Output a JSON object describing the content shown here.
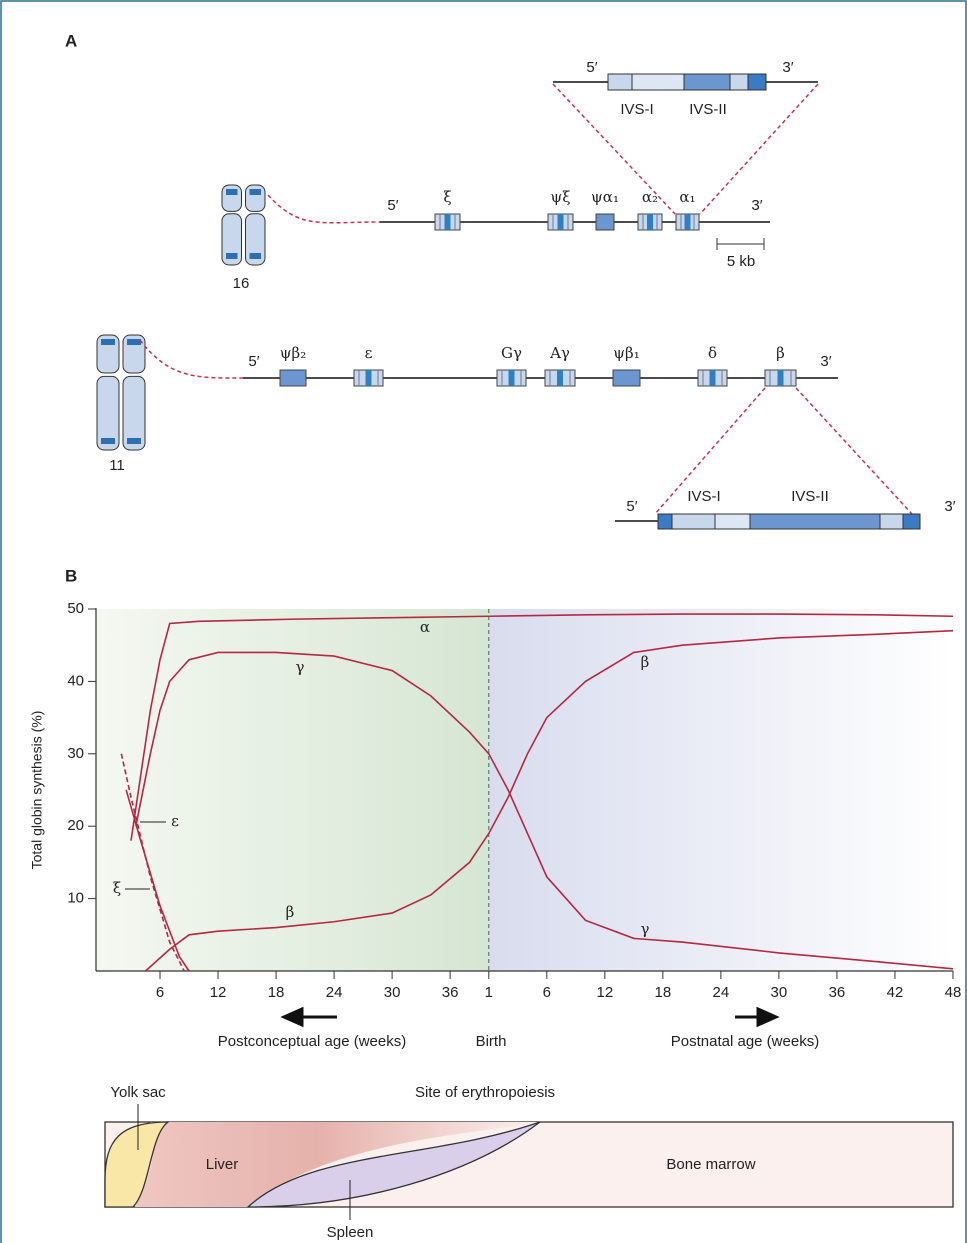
{
  "panel_a": {
    "label": "A",
    "alpha_inset": {
      "five": "5′",
      "three": "3′",
      "ivs1": "IVS-I",
      "ivs2": "IVS-II"
    },
    "alpha_cluster": {
      "chromosome": "16",
      "five": "5′",
      "three": "3′",
      "scale": "5 kb",
      "genes": [
        "ξ",
        "ψξ",
        "ψα₁",
        "α₂",
        "α₁"
      ]
    },
    "beta_cluster": {
      "chromosome": "11",
      "five": "5′",
      "three": "3′",
      "genes": [
        "ψβ₂",
        "ε",
        "Gγ",
        "Aγ",
        "ψβ₁",
        "δ",
        "β"
      ]
    },
    "beta_inset": {
      "five": "5′",
      "three": "3′",
      "ivs1": "IVS-I",
      "ivs2": "IVS-II"
    }
  },
  "chart_data": {
    "type": "line",
    "panel_label": "B",
    "ylabel": "Total globin synthesis (%)",
    "annotations": [
      "Postconceptual age (weeks)",
      "Birth",
      "Postnatal age (weeks)"
    ],
    "xlim": [
      -0.6,
      88.5
    ],
    "ylim": [
      0,
      50
    ],
    "yticks": [
      10,
      20,
      30,
      40,
      50
    ],
    "xticks": [
      6,
      12,
      18,
      24,
      30,
      36,
      {
        "value": 40,
        "label": "1"
      },
      {
        "value": 46,
        "label": "6"
      },
      {
        "value": 52,
        "label": "12"
      },
      {
        "value": 58,
        "label": "18"
      },
      {
        "value": 64,
        "label": "24"
      },
      {
        "value": 70,
        "label": "30"
      },
      {
        "value": 76,
        "label": "36"
      },
      {
        "value": 82,
        "label": "42"
      },
      {
        "value": 88,
        "label": "48"
      }
    ],
    "series": [
      {
        "name": "α",
        "color": "#b5283f",
        "dashed": false,
        "x": [
          3,
          4,
          5,
          6,
          7,
          10,
          20,
          30,
          40,
          50,
          60,
          70,
          80,
          88
        ],
        "values": [
          18,
          27,
          36,
          43,
          48,
          48.3,
          48.6,
          48.8,
          49,
          49.2,
          49.3,
          49.3,
          49.2,
          49
        ]
      },
      {
        "name": "γ",
        "color": "#b5283f",
        "dashed": false,
        "x": [
          3.5,
          5,
          6,
          7,
          9,
          12,
          18,
          24,
          30,
          34,
          38,
          40,
          42,
          44,
          46,
          50,
          55,
          60,
          70,
          80,
          88
        ],
        "values": [
          20,
          30,
          36,
          40,
          43,
          44,
          44,
          43.5,
          41.5,
          38,
          33,
          30,
          25,
          19,
          13,
          7,
          4.5,
          4,
          2.5,
          1.3,
          0.3
        ]
      },
      {
        "name": "β",
        "color": "#b5283f",
        "dashed": false,
        "x": [
          4.5,
          7,
          9,
          12,
          18,
          24,
          30,
          34,
          38,
          40,
          42,
          44,
          46,
          50,
          55,
          60,
          70,
          80,
          88
        ],
        "values": [
          0,
          3,
          5,
          5.5,
          6,
          6.8,
          8,
          10.5,
          15,
          19,
          24,
          30,
          35,
          40,
          44,
          45,
          46,
          46.5,
          47
        ]
      },
      {
        "name": "ε",
        "color": "#b5283f",
        "dashed": false,
        "x": [
          2.5,
          4,
          6,
          8,
          9
        ],
        "values": [
          25,
          18,
          9,
          2,
          0
        ]
      },
      {
        "name": "ξ",
        "color": "#b5283f",
        "dashed": true,
        "x": [
          2,
          3,
          5,
          7,
          8.5
        ],
        "values": [
          30,
          24,
          13,
          4,
          0
        ]
      }
    ]
  },
  "erythropoiesis": {
    "title": "Site of erythropoiesis",
    "yolk_sac": "Yolk sac",
    "liver": "Liver",
    "spleen": "Spleen",
    "bone_marrow": "Bone marrow"
  }
}
